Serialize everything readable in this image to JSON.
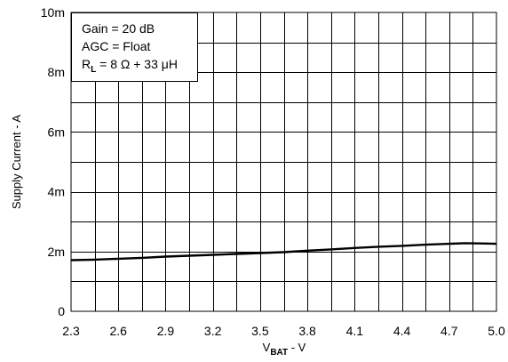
{
  "chart_data": {
    "type": "line",
    "title": "",
    "xlabel": {
      "main": "V",
      "subscript": "BAT",
      "suffix": " - V"
    },
    "ylabel": "Supply Current - A",
    "xlim": [
      2.3,
      5.0
    ],
    "ylim": [
      0,
      0.01
    ],
    "x_ticks": [
      2.3,
      2.6,
      2.9,
      3.2,
      3.5,
      3.8,
      4.1,
      4.4,
      4.7,
      5.0
    ],
    "x_tick_labels": [
      "2.3",
      "2.6",
      "2.9",
      "3.2",
      "3.5",
      "3.8",
      "4.1",
      "4.4",
      "4.7",
      "5.0"
    ],
    "y_ticks": [
      0,
      0.002,
      0.004,
      0.006,
      0.008,
      0.01
    ],
    "y_tick_labels": [
      "0",
      "2m",
      "4m",
      "6m",
      "8m",
      "10m"
    ],
    "grid": true,
    "x_minor_divisions": 2,
    "y_minor_divisions": 2,
    "legend": {
      "placement": "top-left",
      "lines": [
        {
          "text": "Gain = 20 dB"
        },
        {
          "text": "AGC = Float"
        },
        {
          "main": "R",
          "subscript": "L",
          "suffix": " = 8 Ω + 33 μH"
        }
      ]
    },
    "series": [
      {
        "color": "#000000",
        "x": [
          2.3,
          2.45,
          2.6,
          2.75,
          2.9,
          3.05,
          3.2,
          3.35,
          3.5,
          3.65,
          3.8,
          3.95,
          4.1,
          4.25,
          4.4,
          4.55,
          4.7,
          4.8,
          4.9,
          5.0
        ],
        "y": [
          0.00171,
          0.00173,
          0.00176,
          0.00179,
          0.00183,
          0.00186,
          0.00189,
          0.00192,
          0.00195,
          0.00198,
          0.00203,
          0.00207,
          0.00212,
          0.00216,
          0.00219,
          0.00223,
          0.00226,
          0.00228,
          0.00227,
          0.00226
        ]
      }
    ]
  }
}
